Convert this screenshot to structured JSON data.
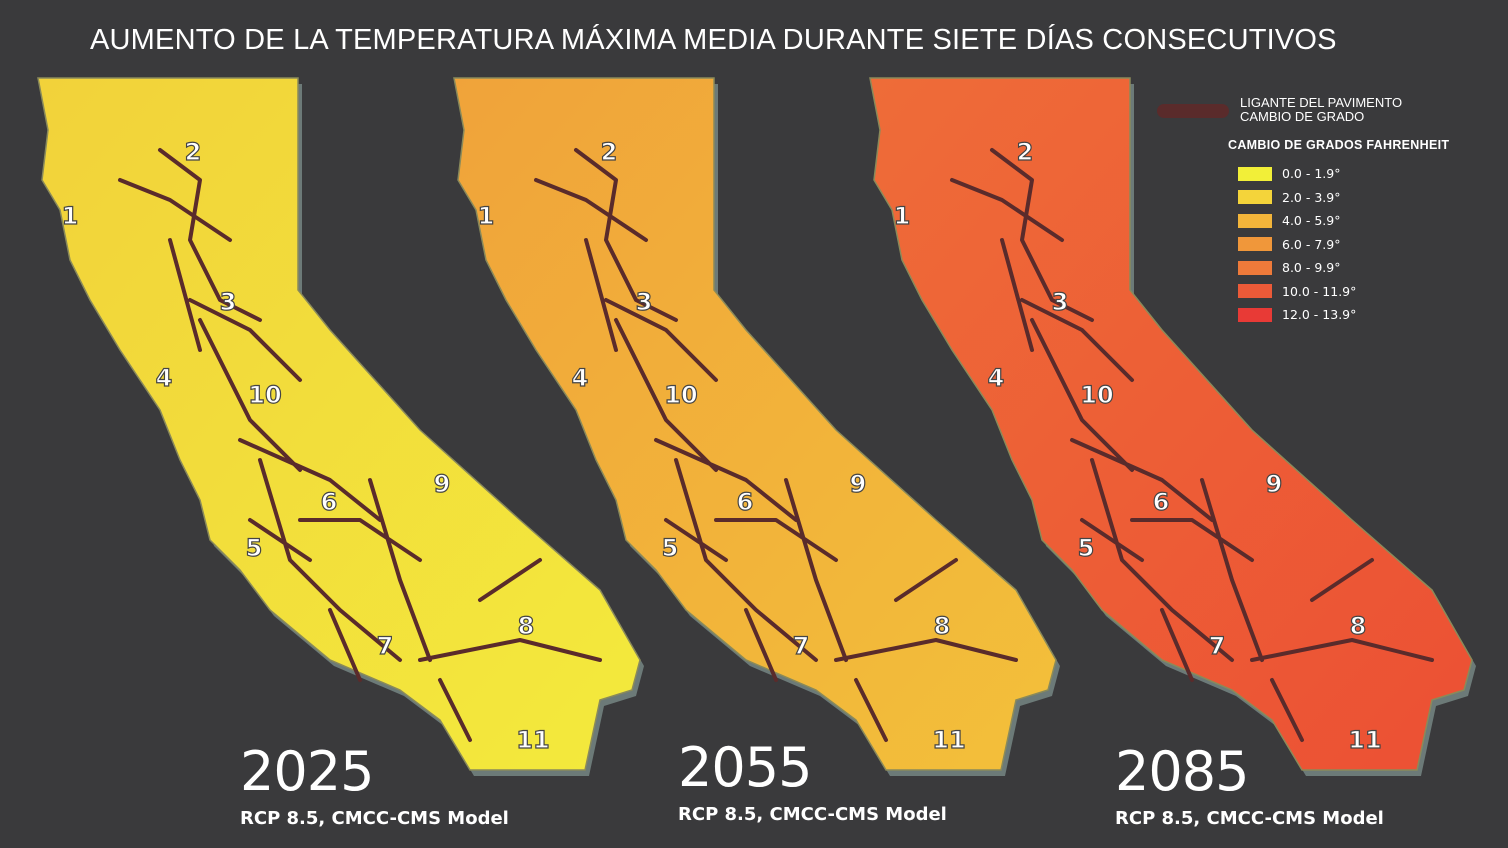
{
  "title": "AUMENTO DE LA TEMPERATURA MÁXIMA MEDIA DURANTE SIETE DÍAS CONSECUTIVOS",
  "legend": {
    "line_label_1": "LIGANTE DEL PAVIMENTO",
    "line_label_2": "CAMBIO DE GRADO",
    "line_color": "#5a2b2b",
    "heading": "CAMBIO DE GRADOS FAHRENHEIT",
    "items": [
      {
        "label": "0.0 - 1.9°",
        "color": "#f2ef38"
      },
      {
        "label": "2.0 - 3.9°",
        "color": "#f4d43a"
      },
      {
        "label": "4.0 - 5.9°",
        "color": "#f3b53a"
      },
      {
        "label": "6.0 - 7.9°",
        "color": "#f0973a"
      },
      {
        "label": "8.0 - 9.9°",
        "color": "#ee7a3a"
      },
      {
        "label": "10.0 - 11.9°",
        "color": "#ec5a38"
      },
      {
        "label": "12.0 - 13.9°",
        "color": "#e83a36"
      }
    ]
  },
  "panels": [
    {
      "year": "2025",
      "model": "RCP 8.5, CMCC-CMS Model",
      "fill": "#f2d23a",
      "fill2": "#f3ea3c"
    },
    {
      "year": "2055",
      "model": "RCP 8.5, CMCC-CMS Model",
      "fill": "#f0a33a",
      "fill2": "#f3c03a"
    },
    {
      "year": "2085",
      "model": "RCP 8.5, CMCC-CMS Model",
      "fill": "#ee6c38",
      "fill2": "#ec5034"
    }
  ],
  "districts": [
    "1",
    "2",
    "3",
    "4",
    "5",
    "6",
    "7",
    "8",
    "9",
    "10",
    "11"
  ]
}
